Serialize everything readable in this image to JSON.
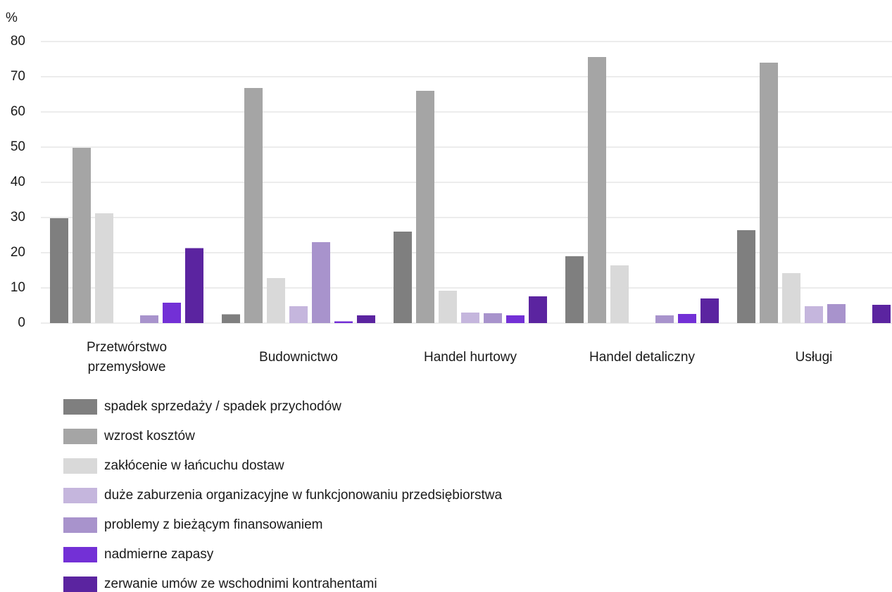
{
  "chart_data": {
    "type": "bar",
    "y_label": "%",
    "categories": [
      "Przetwórstwo przemysłowe",
      "Budownictwo",
      "Handel hurtowy",
      "Handel detaliczny",
      "Usługi"
    ],
    "series": [
      {
        "name": "spadek sprzedaży / spadek przychodów",
        "color": "#7f7f7f",
        "values": [
          29.8,
          2.5,
          26,
          19,
          26.4
        ]
      },
      {
        "name": "wzrost kosztów",
        "color": "#a5a5a5",
        "values": [
          49.8,
          66.8,
          66,
          75.6,
          74
        ]
      },
      {
        "name": "zakłócenie w łańcuchu dostaw",
        "color": "#d9d9d9",
        "values": [
          31.2,
          12.8,
          9.2,
          16.4,
          14.2
        ]
      },
      {
        "name": "duże zaburzenia organizacyjne w funkcjonowaniu przedsiębiorstwa",
        "color": "#c5b6dd",
        "values": [
          null,
          4.8,
          3.0,
          null,
          4.8
        ]
      },
      {
        "name": "problemy z bieżącym finansowaniem",
        "color": "#a893cc",
        "values": [
          2.2,
          23,
          2.8,
          2.2,
          5.4
        ]
      },
      {
        "name": "nadmierne zapasy",
        "color": "#7330d6",
        "values": [
          5.8,
          0.5,
          2.2,
          2.6,
          null
        ]
      },
      {
        "name": "zerwanie umów ze wschodnimi kontrahentami",
        "color": "#5b24a0",
        "values": [
          21.3,
          2.2,
          7.6,
          7.0,
          5.2
        ]
      }
    ],
    "ylim": [
      0,
      80
    ],
    "yticks": [
      0,
      10,
      20,
      30,
      40,
      50,
      60,
      70,
      80
    ],
    "grid": true
  }
}
